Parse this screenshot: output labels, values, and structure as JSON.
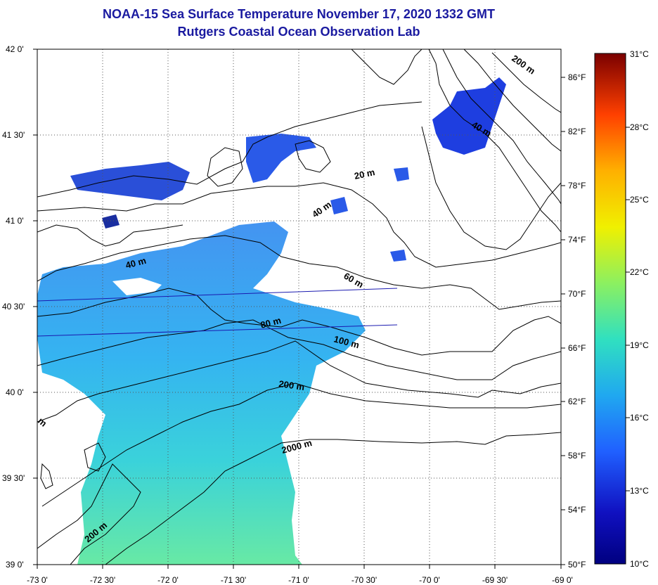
{
  "title": {
    "line1": "NOAA-15 Sea Surface Temperature November 17, 2020 1332 GMT",
    "line2": "Rutgers Coastal Ocean Observation Lab"
  },
  "map": {
    "lat_labels": [
      "42 0'",
      "41 30'",
      "41 0'",
      "40 30'",
      "40 0'",
      "39 30'",
      "39 0'"
    ],
    "lon_labels": [
      "-73 0'",
      "-72 30'",
      "-72 0'",
      "-71 30'",
      "-71 0'",
      "-70 30'",
      "-70 0'",
      "-69 30'",
      "-69 0'"
    ],
    "fahrenheit_labels": [
      "86°F",
      "82°F",
      "78°F",
      "74°F",
      "70°F",
      "66°F",
      "62°F",
      "58°F",
      "54°F",
      "50°F"
    ],
    "contour_labels": [
      "200 m",
      "40 m",
      "20 m",
      "40 m",
      "40 m",
      "60 m",
      "80 m",
      "100 m",
      "200 m",
      "2000 m",
      "200 m",
      "m"
    ]
  },
  "colorbar": {
    "celsius_labels": [
      "31°C",
      "28°C",
      "25°C",
      "22°C",
      "19°C",
      "16°C",
      "13°C",
      "10°C"
    ],
    "colors": [
      "#7a0000",
      "#d40000",
      "#ff5a00",
      "#ffb000",
      "#f0f000",
      "#8cf060",
      "#30e0c0",
      "#20a0f0",
      "#2050ff",
      "#1010b0",
      "#000080"
    ]
  }
}
